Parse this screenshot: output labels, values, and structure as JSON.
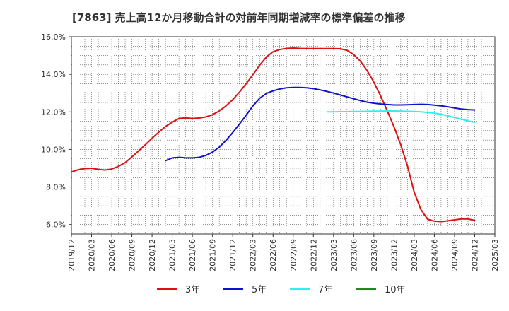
{
  "chart_data": {
    "type": "line",
    "title": "[7863]  売上高12か月移動合計の対前年同期増減率の標準偏差の推移",
    "xlabel": "",
    "ylabel": "",
    "x_ticks": [
      "2019/12",
      "2020/03",
      "2020/06",
      "2020/09",
      "2020/12",
      "2021/03",
      "2021/06",
      "2021/09",
      "2021/12",
      "2022/03",
      "2022/06",
      "2022/09",
      "2022/12",
      "2023/03",
      "2023/06",
      "2023/09",
      "2023/12",
      "2024/03",
      "2024/06",
      "2024/09",
      "2024/12",
      "2025/03"
    ],
    "x_range": [
      "2019/12",
      "2025/03"
    ],
    "y_ticks": [
      "6.0%",
      "8.0%",
      "10.0%",
      "12.0%",
      "14.0%",
      "16.0%"
    ],
    "ylim": [
      5.5,
      16.0
    ],
    "grid": true,
    "legend_position": "bottom",
    "series": [
      {
        "name": "3年",
        "color": "#dd1111",
        "x": [
          "2019/12",
          "2020/01",
          "2020/02",
          "2020/03",
          "2020/04",
          "2020/05",
          "2020/06",
          "2020/07",
          "2020/08",
          "2020/09",
          "2020/10",
          "2020/11",
          "2020/12",
          "2021/01",
          "2021/02",
          "2021/03",
          "2021/04",
          "2021/05",
          "2021/06",
          "2021/07",
          "2021/08",
          "2021/09",
          "2021/10",
          "2021/11",
          "2021/12",
          "2022/01",
          "2022/02",
          "2022/03",
          "2022/04",
          "2022/05",
          "2022/06",
          "2022/07",
          "2022/08",
          "2022/09",
          "2022/10",
          "2022/11",
          "2022/12",
          "2023/01",
          "2023/02",
          "2023/03",
          "2023/04",
          "2023/05",
          "2023/06",
          "2023/07",
          "2023/08",
          "2023/09",
          "2023/10",
          "2023/11",
          "2023/12",
          "2024/01",
          "2024/02",
          "2024/03",
          "2024/04",
          "2024/05",
          "2024/06",
          "2024/07",
          "2024/08",
          "2024/09",
          "2024/10",
          "2024/11",
          "2024/12"
        ],
        "values": [
          8.8,
          8.92,
          8.98,
          9.0,
          8.94,
          8.9,
          8.96,
          9.1,
          9.3,
          9.6,
          9.92,
          10.25,
          10.6,
          10.92,
          11.22,
          11.45,
          11.65,
          11.68,
          11.65,
          11.67,
          11.73,
          11.85,
          12.05,
          12.32,
          12.65,
          13.05,
          13.5,
          13.98,
          14.48,
          14.92,
          15.2,
          15.32,
          15.38,
          15.4,
          15.38,
          15.37,
          15.37,
          15.37,
          15.37,
          15.37,
          15.36,
          15.28,
          15.05,
          14.7,
          14.2,
          13.58,
          12.85,
          12.05,
          11.2,
          10.25,
          9.12,
          7.72,
          6.8,
          6.28,
          6.18,
          6.16,
          6.2,
          6.25,
          6.3,
          6.3,
          6.22
        ]
      },
      {
        "name": "5年",
        "color": "#1111cc",
        "x": [
          "2021/02",
          "2021/03",
          "2021/04",
          "2021/05",
          "2021/06",
          "2021/07",
          "2021/08",
          "2021/09",
          "2021/10",
          "2021/11",
          "2021/12",
          "2022/01",
          "2022/02",
          "2022/03",
          "2022/04",
          "2022/05",
          "2022/06",
          "2022/07",
          "2022/08",
          "2022/09",
          "2022/10",
          "2022/11",
          "2022/12",
          "2023/01",
          "2023/02",
          "2023/03",
          "2023/04",
          "2023/05",
          "2023/06",
          "2023/07",
          "2023/08",
          "2023/09",
          "2023/10",
          "2023/11",
          "2023/12",
          "2024/01",
          "2024/02",
          "2024/03",
          "2024/04",
          "2024/05",
          "2024/06",
          "2024/07",
          "2024/08",
          "2024/09",
          "2024/10",
          "2024/11",
          "2024/12"
        ],
        "values": [
          9.4,
          9.55,
          9.58,
          9.55,
          9.55,
          9.58,
          9.68,
          9.86,
          10.12,
          10.48,
          10.9,
          11.35,
          11.82,
          12.32,
          12.72,
          12.98,
          13.12,
          13.22,
          13.28,
          13.3,
          13.3,
          13.28,
          13.24,
          13.17,
          13.09,
          13.0,
          12.9,
          12.8,
          12.7,
          12.6,
          12.52,
          12.46,
          12.42,
          12.39,
          12.37,
          12.37,
          12.38,
          12.39,
          12.4,
          12.39,
          12.36,
          12.32,
          12.27,
          12.21,
          12.15,
          12.12,
          12.1
        ]
      },
      {
        "name": "7年",
        "color": "#33eeee",
        "x": [
          "2023/02",
          "2023/03",
          "2023/04",
          "2023/05",
          "2023/06",
          "2023/07",
          "2023/08",
          "2023/09",
          "2023/10",
          "2023/11",
          "2023/12",
          "2024/01",
          "2024/02",
          "2024/03",
          "2024/04",
          "2024/05",
          "2024/06",
          "2024/07",
          "2024/08",
          "2024/09",
          "2024/10",
          "2024/11",
          "2024/12"
        ],
        "values": [
          12.0,
          12.0,
          12.01,
          12.01,
          12.02,
          12.02,
          12.03,
          12.04,
          12.04,
          12.05,
          12.05,
          12.04,
          12.03,
          12.02,
          12.0,
          11.97,
          11.93,
          11.87,
          11.79,
          11.7,
          11.61,
          11.52,
          11.44
        ]
      },
      {
        "name": "10年",
        "color": "#228822",
        "x": [],
        "values": []
      }
    ]
  }
}
